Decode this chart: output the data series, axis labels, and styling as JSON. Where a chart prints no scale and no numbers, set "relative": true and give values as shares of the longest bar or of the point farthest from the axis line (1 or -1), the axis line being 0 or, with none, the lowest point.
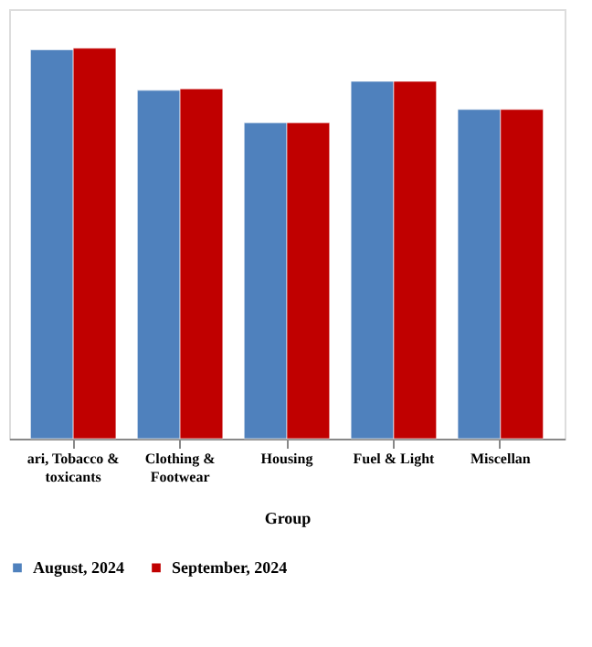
{
  "chart_data": {
    "type": "bar",
    "relative": true,
    "xlabel": "Group",
    "categories": [
      "ari, Tobacco & toxicants",
      "Clothing & Footwear",
      "Housing",
      "Fuel & Light",
      "Miscellan"
    ],
    "series": [
      {
        "name": "August, 2024",
        "color": "#4f81bd",
        "values": [
          0.996,
          0.892,
          0.809,
          0.915,
          0.843
        ]
      },
      {
        "name": "September, 2024",
        "color": "#c00000",
        "values": [
          1.0,
          0.896,
          0.809,
          0.915,
          0.843
        ]
      }
    ],
    "legend": "bottom",
    "grid": false
  }
}
